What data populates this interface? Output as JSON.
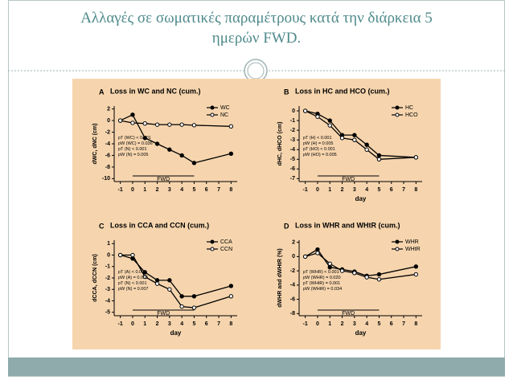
{
  "title_lines": [
    "Αλλαγές σε σωματικές παραμέτρους κατά την διάρκεια 5",
    "ημερών FWD."
  ],
  "chart_data": [
    {
      "type": "line",
      "panel": "A",
      "title": "Loss in WC and NC (cum.)",
      "ylabel": "dWC, dNC (cm)",
      "x": [
        -1,
        0,
        1,
        2,
        3,
        4,
        5,
        8
      ],
      "xlim": [
        -1.5,
        8.5
      ],
      "xticks": [
        -1,
        0,
        1,
        2,
        3,
        4,
        5,
        6,
        7,
        8
      ],
      "ylim": [
        -10.5,
        2.5
      ],
      "yticks": [
        2,
        0,
        -2,
        -4,
        -6,
        -8,
        -10
      ],
      "series": [
        {
          "name": "WC",
          "color": "#000000",
          "marker": "filled",
          "values": [
            0,
            1,
            -3,
            -4,
            -5,
            -6,
            -7.3,
            -5.7
          ]
        },
        {
          "name": "NC",
          "color": "#000000",
          "marker": "open",
          "values": [
            0,
            -0.4,
            -0.5,
            -0.7,
            -0.7,
            -0.7,
            -0.8,
            -1
          ]
        }
      ],
      "annotations": [
        "pT (WC) < 0.001",
        "pW (WC) = 0.036",
        "pT (N) < 0.001",
        "pW (N) = 0.005"
      ],
      "fwd": {
        "label": "FWD",
        "x": [
          0,
          5
        ]
      },
      "legend": "upper right"
    },
    {
      "type": "line",
      "panel": "B",
      "title": "Loss in HC and HCO (cum.)",
      "ylabel": "dHC, dHCO (cm)",
      "xlabel": "day",
      "x": [
        -1,
        0,
        1,
        2,
        3,
        4,
        5,
        8
      ],
      "xlim": [
        -1.5,
        8.5
      ],
      "xticks": [
        -1,
        0,
        1,
        2,
        3,
        4,
        5,
        6,
        7,
        8
      ],
      "ylim": [
        -7.3,
        0.5
      ],
      "yticks": [
        0,
        -1,
        -2,
        -3,
        -4,
        -5,
        -6,
        -7
      ],
      "series": [
        {
          "name": "HC",
          "color": "#000000",
          "marker": "filled",
          "values": [
            0,
            -0.3,
            -1,
            -2.5,
            -2.5,
            -3.5,
            -4.6,
            -4.8
          ]
        },
        {
          "name": "HCO",
          "color": "#000000",
          "marker": "open",
          "values": [
            0,
            -0.6,
            -1.5,
            -2.8,
            -3,
            -4,
            -5,
            -4.8
          ]
        }
      ],
      "annotations": [
        "pT (H) < 0.001",
        "pW (H) = 0.005",
        "pT (HO) < 0.001",
        "pW (HO) = 0.005"
      ],
      "fwd": {
        "label": "FWD",
        "x": [
          0,
          5
        ]
      },
      "legend": "upper right"
    },
    {
      "type": "line",
      "panel": "C",
      "title": "Loss in CCA and CCN (cum.)",
      "ylabel": "dCCA, dCCN (cm)",
      "xlabel": "day",
      "x": [
        -1,
        0,
        1,
        2,
        3,
        4,
        5,
        8
      ],
      "xlim": [
        -1.5,
        8.5
      ],
      "xticks": [
        -1,
        0,
        1,
        2,
        3,
        4,
        5,
        6,
        7,
        8
      ],
      "ylim": [
        -5.3,
        1.3
      ],
      "yticks": [
        1,
        0,
        -1,
        -2,
        -3,
        -4,
        -5
      ],
      "series": [
        {
          "name": "CCA",
          "color": "#000000",
          "marker": "filled",
          "values": [
            0,
            -0.3,
            -1.5,
            -2.2,
            -2.2,
            -3.6,
            -3.6,
            -2.7
          ]
        },
        {
          "name": "CCN",
          "color": "#000000",
          "marker": "open",
          "values": [
            0,
            0,
            -1.9,
            -2.5,
            -3,
            -4.5,
            -4.6,
            -3.6
          ]
        }
      ],
      "annotations": [
        "pT (A) < 0.001",
        "pW (A) = 0.005",
        "pT (N) < 0.001",
        "pW (N) = 0.007"
      ],
      "fwd": {
        "label": "FWD",
        "x": [
          0,
          5
        ]
      },
      "legend": "upper right"
    },
    {
      "type": "line",
      "panel": "D",
      "title": "Loss in WHR and WHtR (cum.)",
      "ylabel": "dWHR and dWHtR (%)",
      "xlabel": "day",
      "x": [
        -1,
        0,
        1,
        2,
        3,
        4,
        5,
        8
      ],
      "xlim": [
        -1.5,
        8.5
      ],
      "xticks": [
        -1,
        0,
        1,
        2,
        3,
        4,
        5,
        6,
        7,
        8
      ],
      "ylim": [
        -8.3,
        2.3
      ],
      "yticks": [
        2,
        0,
        -2,
        -4,
        -6,
        -8
      ],
      "series": [
        {
          "name": "WHR",
          "color": "#000000",
          "marker": "filled",
          "values": [
            0,
            1,
            -1.5,
            -1.8,
            -2.1,
            -2.7,
            -2.5,
            -1.4
          ]
        },
        {
          "name": "WHtR",
          "color": "#000000",
          "marker": "open",
          "values": [
            0,
            0.5,
            -1,
            -2,
            -2.3,
            -2.9,
            -3.2,
            -2.5
          ]
        }
      ],
      "annotations": [
        "pT (WHR) < 0.001",
        "pW (WHR) = 0.020",
        "pT (WHtR) = 0.001",
        "pW (WHtR) = 0.034"
      ],
      "fwd": {
        "label": "FWD",
        "x": [
          0,
          5
        ]
      },
      "legend": "upper right"
    }
  ]
}
